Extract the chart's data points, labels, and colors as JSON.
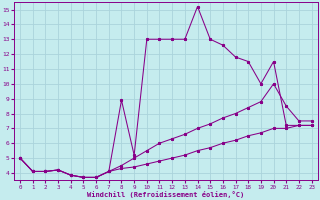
{
  "xlabel": "Windchill (Refroidissement éolien,°C)",
  "background_color": "#c5ecee",
  "grid_color": "#aad4dc",
  "line_color": "#880088",
  "xlim": [
    -0.5,
    23.5
  ],
  "ylim": [
    3.5,
    15.5
  ],
  "xticks": [
    0,
    1,
    2,
    3,
    4,
    5,
    6,
    7,
    8,
    9,
    10,
    11,
    12,
    13,
    14,
    15,
    16,
    17,
    18,
    19,
    20,
    21,
    22,
    23
  ],
  "yticks": [
    4,
    5,
    6,
    7,
    8,
    9,
    10,
    11,
    12,
    13,
    14,
    15
  ],
  "line1_x": [
    0,
    1,
    2,
    3,
    4,
    5,
    6,
    7,
    8,
    9,
    10,
    11,
    12,
    13,
    14,
    15,
    16,
    17,
    18,
    19,
    20,
    21,
    22,
    23
  ],
  "line1_y": [
    5.0,
    4.1,
    4.1,
    4.2,
    3.85,
    3.7,
    3.7,
    4.1,
    8.9,
    5.2,
    13.0,
    13.0,
    13.0,
    13.0,
    15.2,
    13.0,
    12.6,
    11.8,
    11.5,
    10.0,
    11.5,
    7.2,
    7.2,
    7.2
  ],
  "line2_x": [
    0,
    1,
    2,
    3,
    4,
    5,
    6,
    7,
    8,
    9,
    10,
    11,
    12,
    13,
    14,
    15,
    16,
    17,
    18,
    19,
    20,
    21,
    22,
    23
  ],
  "line2_y": [
    5.0,
    4.1,
    4.1,
    4.2,
    3.85,
    3.7,
    3.7,
    4.1,
    4.5,
    5.0,
    5.5,
    6.0,
    6.3,
    6.6,
    7.0,
    7.3,
    7.7,
    8.0,
    8.4,
    8.8,
    10.0,
    8.5,
    7.5,
    7.5
  ],
  "line3_x": [
    0,
    1,
    2,
    3,
    4,
    5,
    6,
    7,
    8,
    9,
    10,
    11,
    12,
    13,
    14,
    15,
    16,
    17,
    18,
    19,
    20,
    21,
    22,
    23
  ],
  "line3_y": [
    5.0,
    4.1,
    4.1,
    4.2,
    3.85,
    3.7,
    3.7,
    4.1,
    4.3,
    4.4,
    4.6,
    4.8,
    5.0,
    5.2,
    5.5,
    5.7,
    6.0,
    6.2,
    6.5,
    6.7,
    7.0,
    7.0,
    7.2,
    7.2
  ]
}
